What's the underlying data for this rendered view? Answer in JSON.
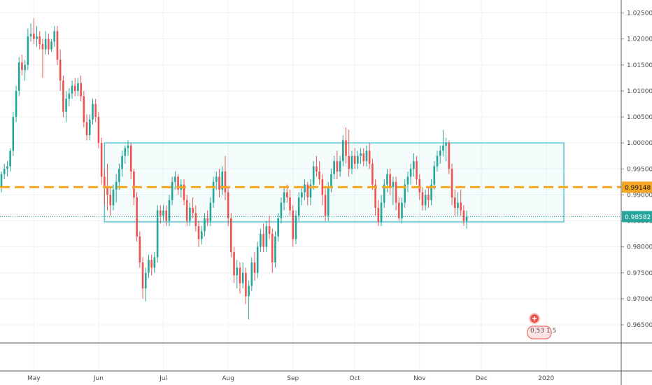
{
  "chart_data": {
    "type": "candlestick",
    "title": "",
    "xlabel": "",
    "ylabel": "",
    "grid": true,
    "ylim": [
      0.9615,
      1.0275
    ],
    "y_ticks": [
      "1.02500",
      "1.02000",
      "1.01500",
      "1.01000",
      "1.00500",
      "1.00000",
      "0.99500",
      "0.99000",
      "0.98500",
      "0.98000",
      "0.97500",
      "0.97000",
      "0.96500"
    ],
    "x_labels": [
      {
        "label": "May",
        "index": 11
      },
      {
        "label": "Jun",
        "index": 33
      },
      {
        "label": "Jul",
        "index": 55
      },
      {
        "label": "Aug",
        "index": 77
      },
      {
        "label": "Sep",
        "index": 99
      },
      {
        "label": "Oct",
        "index": 120
      },
      {
        "label": "Nov",
        "index": 142
      },
      {
        "label": "Dec",
        "index": 163
      },
      {
        "label": "2020",
        "index": 185
      }
    ],
    "index_range": [
      0,
      210
    ],
    "current_price": {
      "value": 0.98582,
      "label": "0.98582",
      "color": "#26a69a"
    },
    "horizontal_line": {
      "value": 0.99148,
      "label": "0.99148",
      "color": "#f5a623",
      "style": "dashed"
    },
    "rectangle": {
      "x_start": 35,
      "x_end": 191,
      "y_top": 1.0,
      "y_bottom": 0.9848,
      "color": "#5bc8d4"
    },
    "up_color": "#26a69a",
    "down_color": "#ef5350",
    "candles": [
      [
        0.9915,
        0.9945,
        0.9905,
        0.994
      ],
      [
        0.994,
        0.996,
        0.993,
        0.995
      ],
      [
        0.995,
        0.9965,
        0.9935,
        0.9955
      ],
      [
        0.9955,
        0.999,
        0.9945,
        0.9985
      ],
      [
        0.9985,
        1.006,
        0.9975,
        1.005
      ],
      [
        1.005,
        1.011,
        1.004,
        1.01
      ],
      [
        1.01,
        1.0165,
        1.009,
        1.0155
      ],
      [
        1.0155,
        1.017,
        1.013,
        1.014
      ],
      [
        1.014,
        1.016,
        1.012,
        1.015
      ],
      [
        1.015,
        1.022,
        1.014,
        1.0205
      ],
      [
        1.0205,
        1.023,
        1.0195,
        1.021
      ],
      [
        1.021,
        1.024,
        1.019,
        1.02
      ],
      [
        1.02,
        1.0225,
        1.0185,
        1.0205
      ],
      [
        1.0205,
        1.0215,
        1.018,
        1.019
      ],
      [
        1.019,
        1.02,
        1.0125,
        1.018
      ],
      [
        1.018,
        1.0215,
        1.017,
        1.02
      ],
      [
        1.02,
        1.021,
        1.017,
        1.018
      ],
      [
        1.018,
        1.02,
        1.0175,
        1.0195
      ],
      [
        1.0195,
        1.0225,
        1.0185,
        1.0215
      ],
      [
        1.0215,
        1.0225,
        1.015,
        1.016
      ],
      [
        1.016,
        1.018,
        1.01,
        1.012
      ],
      [
        1.012,
        1.013,
        1.005,
        1.006
      ],
      [
        1.006,
        1.01,
        1.004,
        1.0085
      ],
      [
        1.0085,
        1.0105,
        1.007,
        1.0095
      ],
      [
        1.0095,
        1.012,
        1.0085,
        1.011
      ],
      [
        1.011,
        1.0125,
        1.009,
        1.01
      ],
      [
        1.01,
        1.0125,
        1.009,
        1.0115
      ],
      [
        1.0115,
        1.013,
        1.008,
        1.009
      ],
      [
        1.009,
        1.01,
        1.003,
        1.004
      ],
      [
        1.004,
        1.0055,
        1.0005,
        1.0015
      ],
      [
        1.0015,
        1.0055,
        1.0005,
        1.0045
      ],
      [
        1.0045,
        1.0085,
        1.0035,
        1.0075
      ],
      [
        1.0075,
        1.0085,
        1.004,
        1.005
      ],
      [
        1.005,
        1.006,
        0.999,
        1.0
      ],
      [
        1.0,
        1.001,
        0.992,
        0.9935
      ],
      [
        0.9935,
        0.995,
        0.988,
        0.9915
      ],
      [
        0.9915,
        0.996,
        0.987,
        0.99
      ],
      [
        0.99,
        0.9915,
        0.986,
        0.988
      ],
      [
        0.988,
        0.992,
        0.987,
        0.991
      ],
      [
        0.991,
        0.994,
        0.9885,
        0.9925
      ],
      [
        0.9925,
        0.996,
        0.991,
        0.995
      ],
      [
        0.995,
        0.9985,
        0.9935,
        0.9975
      ],
      [
        0.9975,
        0.9995,
        0.996,
        0.999
      ],
      [
        0.999,
        1.0005,
        0.9975,
        0.9995
      ],
      [
        0.9995,
        1.0,
        0.993,
        0.9945
      ],
      [
        0.9945,
        0.995,
        0.988,
        0.9895
      ],
      [
        0.9895,
        0.9905,
        0.981,
        0.982
      ],
      [
        0.982,
        0.983,
        0.976,
        0.977
      ],
      [
        0.977,
        0.978,
        0.97,
        0.972
      ],
      [
        0.972,
        0.976,
        0.9695,
        0.975
      ],
      [
        0.975,
        0.9785,
        0.974,
        0.9775
      ],
      [
        0.9775,
        0.9785,
        0.9745,
        0.976
      ],
      [
        0.976,
        0.979,
        0.975,
        0.978
      ],
      [
        0.978,
        0.988,
        0.977,
        0.987
      ],
      [
        0.987,
        0.988,
        0.9845,
        0.986
      ],
      [
        0.986,
        0.988,
        0.985,
        0.987
      ],
      [
        0.987,
        0.988,
        0.984,
        0.985
      ],
      [
        0.985,
        0.99,
        0.984,
        0.989
      ],
      [
        0.989,
        0.9935,
        0.988,
        0.9925
      ],
      [
        0.9925,
        0.9945,
        0.991,
        0.9935
      ],
      [
        0.9935,
        0.994,
        0.99,
        0.991
      ],
      [
        0.991,
        0.993,
        0.9895,
        0.992
      ],
      [
        0.992,
        0.993,
        0.988,
        0.989
      ],
      [
        0.989,
        0.99,
        0.984,
        0.985
      ],
      [
        0.985,
        0.9885,
        0.984,
        0.9875
      ],
      [
        0.9875,
        0.9895,
        0.9855,
        0.9865
      ],
      [
        0.9865,
        0.988,
        0.983,
        0.984
      ],
      [
        0.984,
        0.985,
        0.98,
        0.9815
      ],
      [
        0.9815,
        0.984,
        0.9805,
        0.983
      ],
      [
        0.983,
        0.9865,
        0.982,
        0.9855
      ],
      [
        0.9855,
        0.987,
        0.984,
        0.985
      ],
      [
        0.985,
        0.9895,
        0.984,
        0.9885
      ],
      [
        0.9885,
        0.9935,
        0.9875,
        0.9925
      ],
      [
        0.9925,
        0.9945,
        0.991,
        0.9935
      ],
      [
        0.9935,
        0.995,
        0.9895,
        0.991
      ],
      [
        0.991,
        0.9955,
        0.99,
        0.9945
      ],
      [
        0.9945,
        0.9975,
        0.989,
        0.9905
      ],
      [
        0.9905,
        0.9915,
        0.984,
        0.9855
      ],
      [
        0.9855,
        0.9865,
        0.978,
        0.979
      ],
      [
        0.979,
        0.98,
        0.973,
        0.9745
      ],
      [
        0.9745,
        0.9775,
        0.972,
        0.976
      ],
      [
        0.976,
        0.977,
        0.971,
        0.973
      ],
      [
        0.973,
        0.977,
        0.972,
        0.975
      ],
      [
        0.975,
        0.976,
        0.969,
        0.9705
      ],
      [
        0.9705,
        0.9735,
        0.966,
        0.9725
      ],
      [
        0.9725,
        0.978,
        0.9715,
        0.977
      ],
      [
        0.977,
        0.979,
        0.9735,
        0.975
      ],
      [
        0.975,
        0.981,
        0.974,
        0.98
      ],
      [
        0.98,
        0.9835,
        0.979,
        0.9825
      ],
      [
        0.9825,
        0.9845,
        0.979,
        0.98
      ],
      [
        0.98,
        0.985,
        0.979,
        0.984
      ],
      [
        0.984,
        0.986,
        0.9815,
        0.9825
      ],
      [
        0.9825,
        0.9835,
        0.975,
        0.977
      ],
      [
        0.977,
        0.983,
        0.976,
        0.982
      ],
      [
        0.982,
        0.9865,
        0.981,
        0.9855
      ],
      [
        0.9855,
        0.9895,
        0.9845,
        0.9885
      ],
      [
        0.9885,
        0.9915,
        0.987,
        0.9905
      ],
      [
        0.9905,
        0.992,
        0.9885,
        0.9895
      ],
      [
        0.9895,
        0.991,
        0.986,
        0.987
      ],
      [
        0.987,
        0.988,
        0.98,
        0.9815
      ],
      [
        0.9815,
        0.987,
        0.9805,
        0.986
      ],
      [
        0.986,
        0.9905,
        0.985,
        0.9895
      ],
      [
        0.9895,
        0.9915,
        0.988,
        0.9905
      ],
      [
        0.9905,
        0.993,
        0.989,
        0.992
      ],
      [
        0.992,
        0.9925,
        0.988,
        0.9895
      ],
      [
        0.9895,
        0.993,
        0.988,
        0.992
      ],
      [
        0.992,
        0.9965,
        0.991,
        0.9955
      ],
      [
        0.9955,
        0.9975,
        0.9935,
        0.9945
      ],
      [
        0.9945,
        0.9965,
        0.992,
        0.993
      ],
      [
        0.993,
        0.994,
        0.988,
        0.99
      ],
      [
        0.99,
        0.9915,
        0.985,
        0.986
      ],
      [
        0.986,
        0.9925,
        0.985,
        0.9915
      ],
      [
        0.9915,
        0.995,
        0.9905,
        0.994
      ],
      [
        0.994,
        0.9975,
        0.993,
        0.9965
      ],
      [
        0.9965,
        0.9985,
        0.993,
        0.9945
      ],
      [
        0.9945,
        0.9975,
        0.9935,
        0.9965
      ],
      [
        0.9965,
        1.0015,
        0.9955,
        1.0005
      ],
      [
        1.0005,
        1.003,
        0.996,
        0.9975
      ],
      [
        0.9975,
        1.0025,
        0.9935,
        0.995
      ],
      [
        0.995,
        0.9985,
        0.994,
        0.9975
      ],
      [
        0.9975,
        0.999,
        0.995,
        0.996
      ],
      [
        0.996,
        0.9985,
        0.995,
        0.9975
      ],
      [
        0.9975,
        0.999,
        0.996,
        0.998
      ],
      [
        0.998,
        0.999,
        0.9955,
        0.9965
      ],
      [
        0.9965,
        0.9995,
        0.9955,
        0.9985
      ],
      [
        0.9985,
        1.0,
        0.995,
        0.996
      ],
      [
        0.996,
        0.997,
        0.991,
        0.992
      ],
      [
        0.992,
        0.993,
        0.986,
        0.9875
      ],
      [
        0.9875,
        0.989,
        0.984,
        0.9848
      ],
      [
        0.9848,
        0.99,
        0.984,
        0.9885
      ],
      [
        0.9885,
        0.993,
        0.9875,
        0.992
      ],
      [
        0.992,
        0.995,
        0.9905,
        0.994
      ],
      [
        0.994,
        0.995,
        0.99,
        0.9915
      ],
      [
        0.9915,
        0.9935,
        0.988,
        0.9925
      ],
      [
        0.9925,
        0.9935,
        0.987,
        0.9885
      ],
      [
        0.9885,
        0.9895,
        0.985,
        0.9855
      ],
      [
        0.9855,
        0.9895,
        0.9845,
        0.9885
      ],
      [
        0.9885,
        0.993,
        0.9875,
        0.992
      ],
      [
        0.992,
        0.9945,
        0.9905,
        0.9935
      ],
      [
        0.9935,
        0.996,
        0.992,
        0.995
      ],
      [
        0.995,
        0.998,
        0.9935,
        0.9965
      ],
      [
        0.9965,
        0.9975,
        0.992,
        0.993
      ],
      [
        0.993,
        0.994,
        0.989,
        0.9905
      ],
      [
        0.9905,
        0.9915,
        0.987,
        0.988
      ],
      [
        0.988,
        0.991,
        0.987,
        0.99
      ],
      [
        0.99,
        0.9915,
        0.9875,
        0.989
      ],
      [
        0.989,
        0.993,
        0.988,
        0.992
      ],
      [
        0.992,
        0.9965,
        0.991,
        0.9955
      ],
      [
        0.9955,
        0.9985,
        0.9945,
        0.9975
      ],
      [
        0.9975,
        0.9995,
        0.996,
        0.9985
      ],
      [
        0.9985,
        1.0025,
        0.9975,
        0.9995
      ],
      [
        0.9995,
        1.001,
        0.9965,
        1.0
      ],
      [
        1.0,
        1.0005,
        0.994,
        0.995
      ],
      [
        0.995,
        0.996,
        0.988,
        0.9895
      ],
      [
        0.9895,
        0.991,
        0.986,
        0.9875
      ],
      [
        0.9875,
        0.9905,
        0.986,
        0.9885
      ],
      [
        0.9885,
        0.991,
        0.986,
        0.987
      ],
      [
        0.987,
        0.988,
        0.984,
        0.985
      ],
      [
        0.985,
        0.987,
        0.9835,
        0.9858
      ]
    ]
  },
  "flag": {
    "label": "0.53 1.5"
  }
}
